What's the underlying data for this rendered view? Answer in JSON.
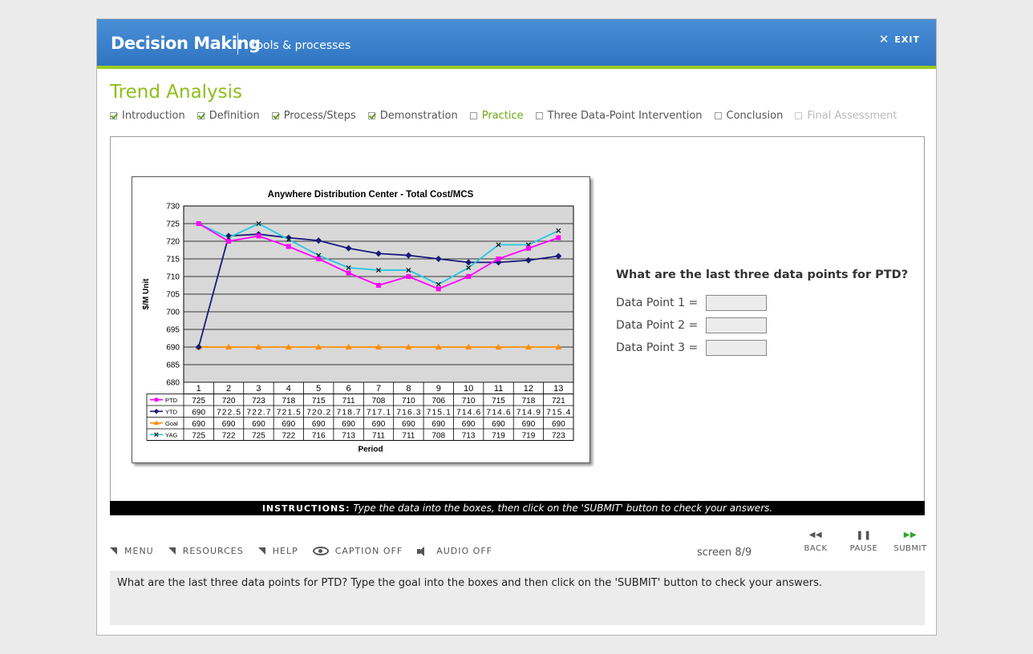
{
  "header": {
    "app_title": "Decision Making",
    "app_subtitle": "tools & processes",
    "exit_label": "EXIT"
  },
  "section_title": "Trend Analysis",
  "steps": [
    {
      "label": "Introduction",
      "state": "checked"
    },
    {
      "label": "Definition",
      "state": "checked"
    },
    {
      "label": "Process/Steps",
      "state": "checked"
    },
    {
      "label": "Demonstration",
      "state": "checked"
    },
    {
      "label": "Practice",
      "state": "active"
    },
    {
      "label": "Three Data-Point Intervention",
      "state": "unchecked"
    },
    {
      "label": "Conclusion",
      "state": "unchecked"
    },
    {
      "label": "Final Assessment",
      "state": "disabled"
    }
  ],
  "chart_data": {
    "type": "line",
    "title": "Anywhere Distribution Center - Total Cost/MCS",
    "xlabel": "Period",
    "ylabel": "$/M Unit",
    "ylim": [
      680,
      730
    ],
    "yticks": [
      680,
      685,
      690,
      695,
      700,
      705,
      710,
      715,
      720,
      725,
      730
    ],
    "categories": [
      "1",
      "2",
      "3",
      "4",
      "5",
      "6",
      "7",
      "8",
      "9",
      "10",
      "11",
      "12",
      "13"
    ],
    "series": [
      {
        "name": "PTD",
        "color": "#ff00ff",
        "marker": "square",
        "values": [
          725,
          720,
          723,
          718,
          715,
          711,
          708,
          710,
          706,
          710,
          715,
          718,
          721
        ],
        "plot_values": [
          725,
          720,
          721.5,
          718.5,
          715,
          711,
          707.5,
          710,
          706.5,
          710,
          715,
          718,
          721
        ],
        "labels": [
          "725",
          "720",
          "723",
          "718",
          "715",
          "711",
          "708",
          "710",
          "706",
          "710",
          "715",
          "718",
          "721"
        ]
      },
      {
        "name": "YTD",
        "color": "#1a1a7a",
        "marker": "diamond",
        "values": [
          690,
          722.5,
          722.7,
          721.5,
          720.2,
          718.7,
          717.1,
          716.3,
          715.1,
          714.6,
          714.6,
          714.9,
          715.4
        ],
        "plot_values": [
          690,
          721.5,
          722,
          721,
          720.2,
          718,
          716.5,
          716,
          715,
          714,
          714,
          714.6,
          715.8
        ],
        "labels": [
          "690",
          "722.5",
          "722.7",
          "721.5",
          "720.2",
          "718.7",
          "717.1",
          "716.3",
          "715.1",
          "714.6",
          "714.6",
          "714.9",
          "715.4"
        ]
      },
      {
        "name": "Goal",
        "color": "#ff8c00",
        "marker": "triangle",
        "values": [
          690,
          690,
          690,
          690,
          690,
          690,
          690,
          690,
          690,
          690,
          690,
          690,
          690
        ],
        "plot_values": [
          690,
          690,
          690,
          690,
          690,
          690,
          690,
          690,
          690,
          690,
          690,
          690,
          690
        ],
        "labels": [
          "690",
          "690",
          "690",
          "690",
          "690",
          "690",
          "690",
          "690",
          "690",
          "690",
          "690",
          "690",
          "690"
        ]
      },
      {
        "name": "YAG",
        "color": "#22c8e0",
        "marker": "x",
        "values": [
          725,
          722,
          725,
          722,
          716,
          713,
          711,
          711,
          708,
          713,
          719,
          719,
          723
        ],
        "plot_values": [
          725,
          721,
          725,
          720.5,
          716,
          712.5,
          711.8,
          711.8,
          707.8,
          712.5,
          719,
          719,
          723
        ],
        "labels": [
          "725",
          "722",
          "725",
          "722",
          "716",
          "713",
          "711",
          "711",
          "708",
          "713",
          "719",
          "719",
          "723"
        ]
      }
    ],
    "grid": true,
    "legend": "data-table"
  },
  "question": "What are the last three data points for PTD?",
  "inputs": [
    {
      "label": "Data Point 1  =",
      "value": "",
      "placeholder": ""
    },
    {
      "label": "Data Point 2  =",
      "value": "",
      "placeholder": ""
    },
    {
      "label": "Data Point 3  =",
      "value": "",
      "placeholder": ""
    }
  ],
  "instructions": {
    "label": "INSTRUCTIONS:",
    "text": " Type the data into the boxes, then click on the 'SUBMIT' button to check your answers."
  },
  "nav": {
    "menu": "MENU",
    "resources": "RESOURCES",
    "help": "HELP",
    "caption": "CAPTION OFF",
    "audio": "AUDIO OFF"
  },
  "screen_count": "screen 8/9",
  "controls": {
    "back": "BACK",
    "pause": "PAUSE",
    "submit": "SUBMIT",
    "back_glyph": "◀◀",
    "pause_glyph": "❚❚",
    "submit_glyph": "▶▶"
  },
  "caption_text": "What are the last three data points for PTD? Type the goal into the boxes and then click on the 'SUBMIT' button to check your answers."
}
